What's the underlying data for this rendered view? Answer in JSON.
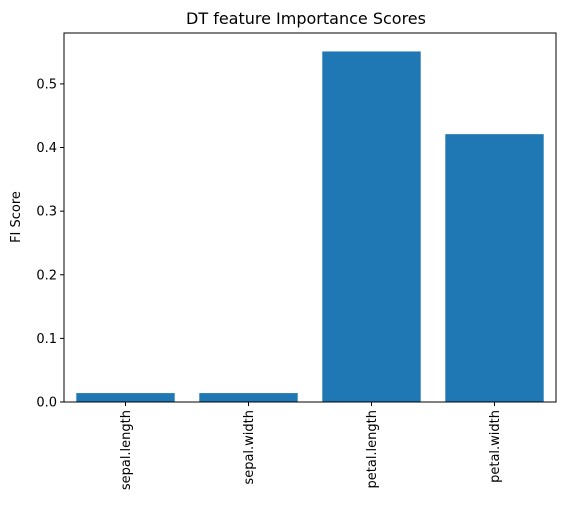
{
  "chart_data": {
    "type": "bar",
    "title": "DT feature Importance Scores",
    "xlabel": "",
    "ylabel": "FI Score",
    "categories": [
      "sepal.length",
      "sepal.width",
      "petal.length",
      "petal.width"
    ],
    "values": [
      0.014,
      0.014,
      0.551,
      0.421
    ],
    "ylim": [
      0,
      0.58
    ],
    "yticks": [
      0.0,
      0.1,
      0.2,
      0.3,
      0.4,
      0.5
    ],
    "ytick_labels": [
      "0.0",
      "0.1",
      "0.2",
      "0.3",
      "0.4",
      "0.5"
    ],
    "bar_color": "#1f77b4",
    "grid": false,
    "legend": "none"
  }
}
